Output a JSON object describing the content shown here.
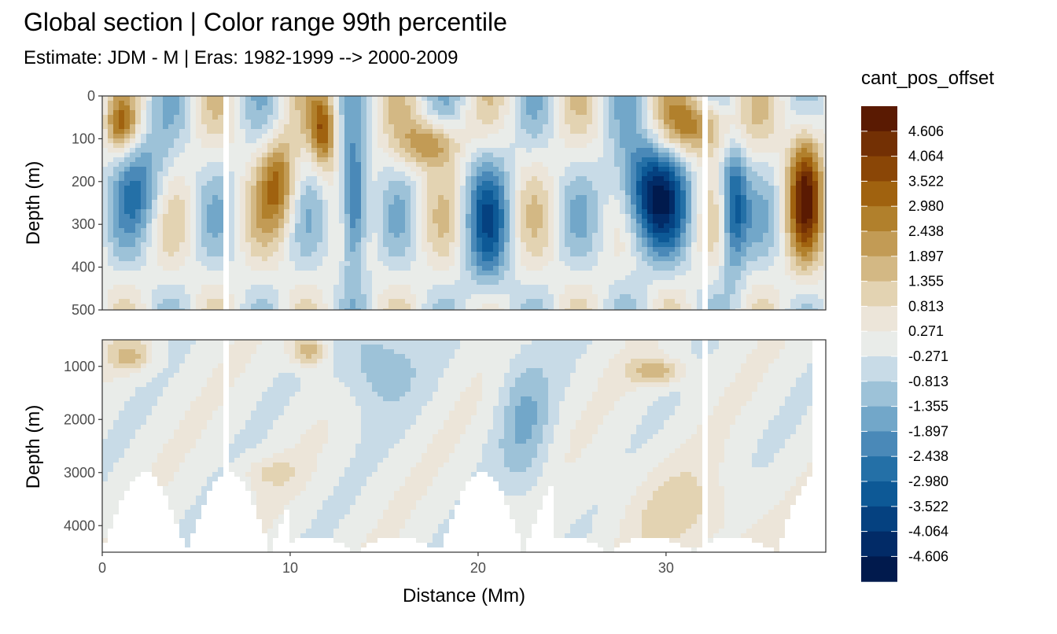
{
  "chart_data": {
    "type": "heatmap",
    "title": "Global section | Color range 99th percentile",
    "subtitle": "Estimate: JDM - M | Eras: 1982-1999 --> 2000-2009",
    "xlabel": "Distance (Mm)",
    "xlim": [
      0,
      38.5
    ],
    "x_ticks": [
      0,
      10,
      20,
      30
    ],
    "panels": [
      {
        "ylabel": "Depth (m)",
        "ylim": [
          0,
          500
        ],
        "y_ticks": [
          0,
          100,
          200,
          300,
          400,
          500
        ],
        "y_reversed": true
      },
      {
        "ylabel": "Depth (m)",
        "ylim": [
          500,
          4500
        ],
        "y_ticks": [
          1000,
          2000,
          3000,
          4000
        ],
        "y_reversed": true
      }
    ],
    "legend": {
      "title": "cant_pos_offset",
      "placement": "right",
      "labels": [
        "4.606",
        "4.064",
        "3.522",
        "2.980",
        "2.438",
        "1.897",
        "1.355",
        "0.813",
        "0.271",
        "-0.271",
        "-0.813",
        "-1.355",
        "-1.897",
        "-2.438",
        "-2.980",
        "-3.522",
        "-4.064",
        "-4.606"
      ],
      "colors": [
        "#5a1a02",
        "#733004",
        "#8a4606",
        "#a0620f",
        "#b1802c",
        "#c29b55",
        "#d3b884",
        "#e3d3b2",
        "#ece5d9",
        "#e9ece9",
        "#c8dbe7",
        "#9dc2d8",
        "#72a7c9",
        "#4a89b8",
        "#2470a7",
        "#0d5996",
        "#054180",
        "#022b67",
        "#011a4d"
      ]
    },
    "shading": "smooth contour fill; brown = positive offset, blue = negative offset, light grey near zero, white = no data"
  }
}
